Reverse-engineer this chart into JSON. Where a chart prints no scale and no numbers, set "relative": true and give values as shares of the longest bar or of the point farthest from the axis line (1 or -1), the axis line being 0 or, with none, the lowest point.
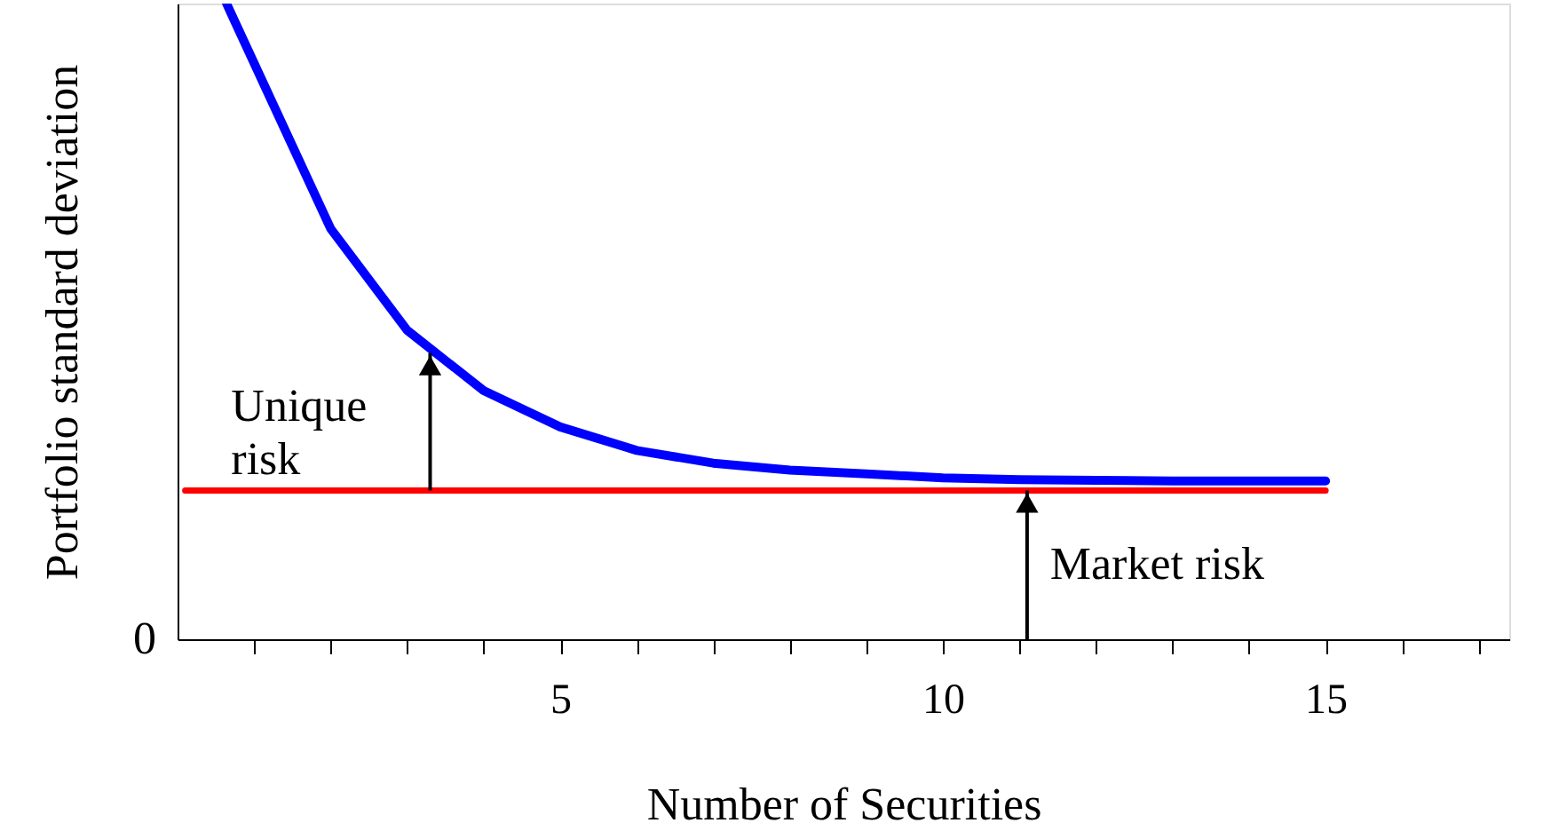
{
  "chart_data": {
    "type": "line",
    "relative": true,
    "xlabel": "Number of Securities",
    "ylabel": "Portfolio standard deviation",
    "xlim": [
      0,
      17.4
    ],
    "xticks": [
      {
        "value": 1,
        "label": null
      },
      {
        "value": 2,
        "label": null
      },
      {
        "value": 3,
        "label": null
      },
      {
        "value": 4,
        "label": null
      },
      5,
      {
        "value": 6,
        "label": null
      },
      {
        "value": 7,
        "label": null
      },
      {
        "value": 8,
        "label": null
      },
      {
        "value": 9,
        "label": null
      },
      10,
      {
        "value": 11,
        "label": null
      },
      {
        "value": 12,
        "label": null
      },
      {
        "value": 13,
        "label": null
      },
      {
        "value": 14,
        "label": null
      },
      15,
      {
        "value": 16,
        "label": null
      },
      {
        "value": 17,
        "label": null
      }
    ],
    "series": [
      {
        "color": "#0000ff",
        "x": [
          0.64,
          2,
          3,
          4,
          5,
          6,
          7,
          8,
          9,
          10,
          11,
          12,
          13,
          14,
          15
        ],
        "values": [
          1,
          0.646,
          0.486,
          0.391,
          0.334,
          0.297,
          0.277,
          0.266,
          0.26,
          0.254,
          0.251,
          0.25,
          0.249,
          0.249,
          0.249
        ]
      },
      {
        "color": "#ff0000",
        "x": [
          0.1,
          15
        ],
        "values": [
          0.234,
          0.234
        ]
      }
    ],
    "annotations": [
      "0",
      {
        "text": "Unique risk",
        "x": 3.3,
        "y": 0.45
      },
      {
        "text": "Market risk",
        "x": 11.1,
        "y": 0.234
      }
    ],
    "grid": false,
    "marker": "none",
    "line_style": "solid"
  }
}
